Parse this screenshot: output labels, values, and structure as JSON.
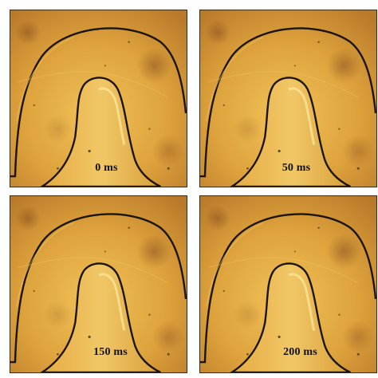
{
  "panels": [
    {
      "label": "0 ms"
    },
    {
      "label": "50 ms"
    },
    {
      "label": "150 ms"
    },
    {
      "label": "200 ms"
    }
  ],
  "colors": {
    "background_bright": "#e9b24a",
    "background_mid": "#d39a36",
    "background_dark": "#b8792a",
    "channel_wall": "#1a1406",
    "highlight": "#f6e08a"
  }
}
